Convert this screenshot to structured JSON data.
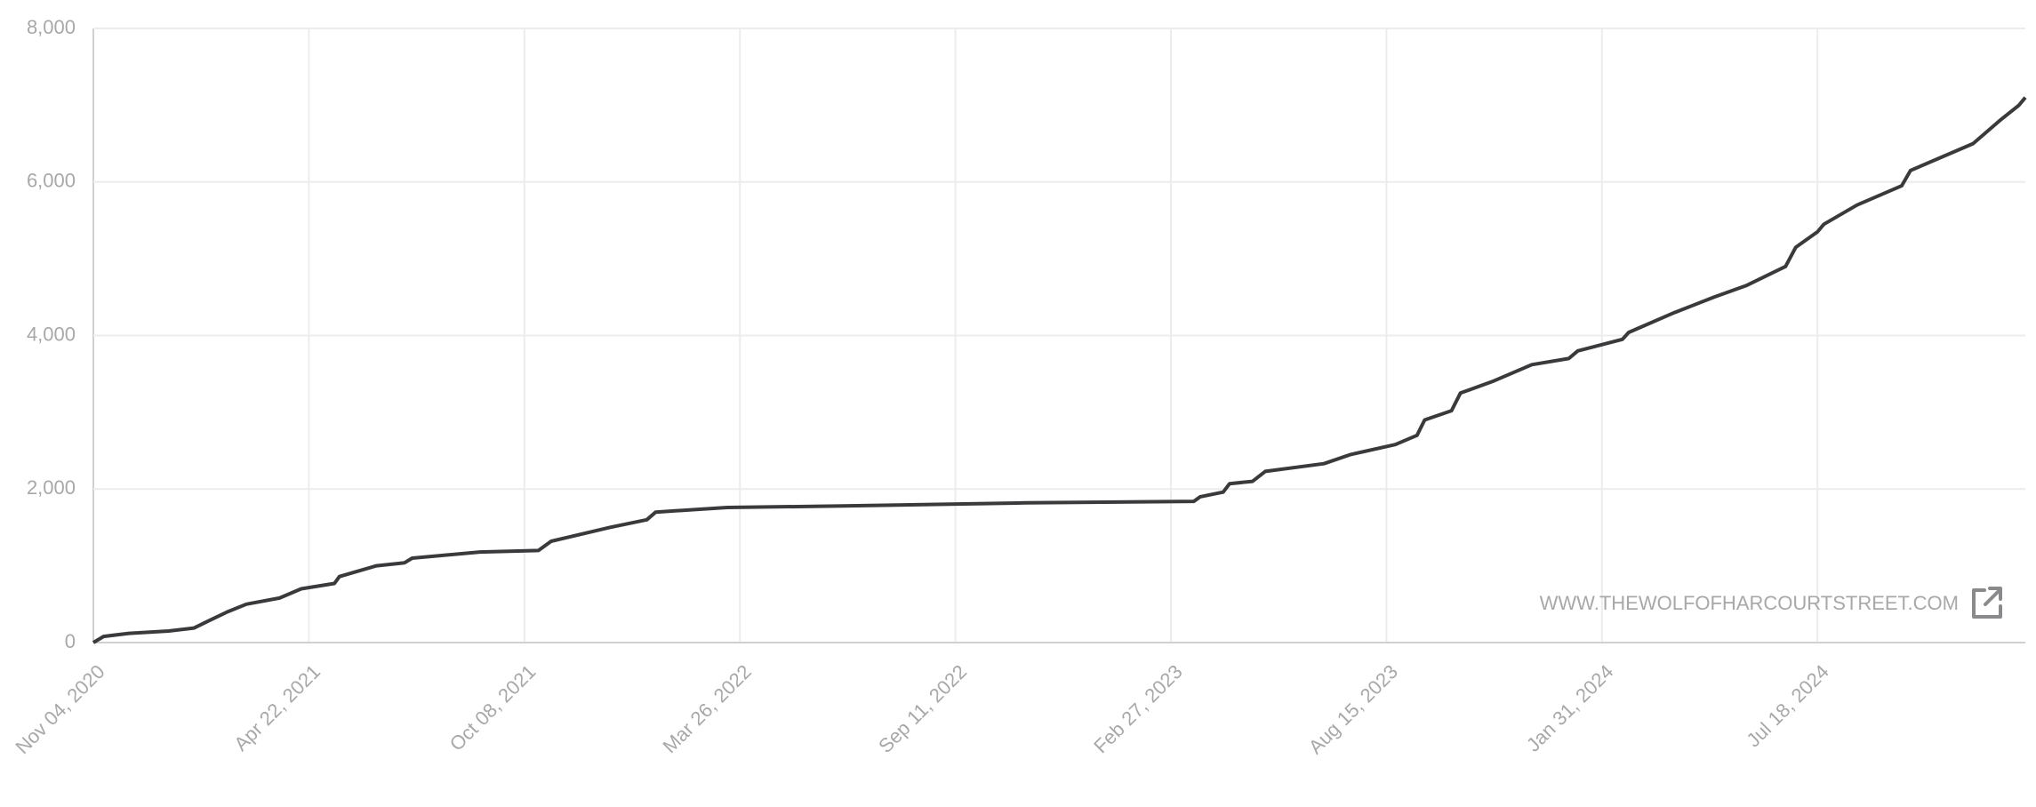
{
  "chart_data": {
    "type": "line",
    "x": [
      "2020-11-04",
      "2020-11-12",
      "2020-12-02",
      "2021-01-02",
      "2021-01-22",
      "2021-02-02",
      "2021-02-17",
      "2021-03-04",
      "2021-03-30",
      "2021-04-16",
      "2021-05-12",
      "2021-05-16",
      "2021-06-14",
      "2021-07-06",
      "2021-07-12",
      "2021-09-03",
      "2021-10-19",
      "2021-10-29",
      "2021-12-14",
      "2022-01-12",
      "2022-01-19",
      "2022-03-16",
      "2022-06-15",
      "2022-11-05",
      "2023-03-17",
      "2023-03-22",
      "2023-04-09",
      "2023-04-14",
      "2023-05-02",
      "2023-05-12",
      "2023-06-27",
      "2023-07-18",
      "2023-08-22",
      "2023-09-08",
      "2023-09-14",
      "2023-10-05",
      "2023-10-12",
      "2023-11-06",
      "2023-12-07",
      "2024-01-05",
      "2024-01-12",
      "2024-02-16",
      "2024-02-21",
      "2024-03-28",
      "2024-04-28",
      "2024-05-23",
      "2024-06-23",
      "2024-07-01",
      "2024-07-18",
      "2024-07-23",
      "2024-08-18",
      "2024-09-22",
      "2024-09-29",
      "2024-11-17",
      "2024-12-08",
      "2024-12-23",
      "2024-12-28"
    ],
    "series": [
      {
        "color": "#3a3a3c",
        "values": [
          0,
          80,
          120,
          150,
          190,
          280,
          400,
          500,
          580,
          700,
          770,
          860,
          1000,
          1040,
          1100,
          1180,
          1200,
          1320,
          1500,
          1600,
          1700,
          1760,
          1780,
          1820,
          1840,
          1900,
          1960,
          2070,
          2100,
          2230,
          2330,
          2450,
          2580,
          2700,
          2900,
          3020,
          3250,
          3400,
          3620,
          3700,
          3800,
          3950,
          4040,
          4300,
          4500,
          4650,
          4900,
          5150,
          5350,
          5450,
          5700,
          5950,
          6150,
          6500,
          6800,
          7000,
          7100
        ]
      }
    ],
    "xlim": [
      "2020-11-04",
      "2024-12-28"
    ],
    "xticks": [
      {
        "value": "2020-11-04",
        "label": "Nov 04, 2020"
      },
      {
        "value": "2021-04-22",
        "label": "Apr 22, 2021"
      },
      {
        "value": "2021-10-08",
        "label": "Oct 08, 2021"
      },
      {
        "value": "2022-03-26",
        "label": "Mar 26, 2022"
      },
      {
        "value": "2022-09-11",
        "label": "Sep 11, 2022"
      },
      {
        "value": "2023-02-27",
        "label": "Feb 27, 2023"
      },
      {
        "value": "2023-08-15",
        "label": "Aug 15, 2023"
      },
      {
        "value": "2024-01-31",
        "label": "Jan 31, 2024"
      },
      {
        "value": "2024-07-18",
        "label": "Jul 18, 2024"
      }
    ],
    "ylim": [
      0,
      8000
    ],
    "yticks": [
      0,
      {
        "value": 2000,
        "label": "2,000"
      },
      {
        "value": 4000,
        "label": "4,000"
      },
      {
        "value": 6000,
        "label": "6,000"
      },
      {
        "value": 8000,
        "label": "8,000"
      }
    ],
    "grid": true,
    "watermark": "WWW.THEWOLFOFHARCOURTSTREET.COM"
  }
}
